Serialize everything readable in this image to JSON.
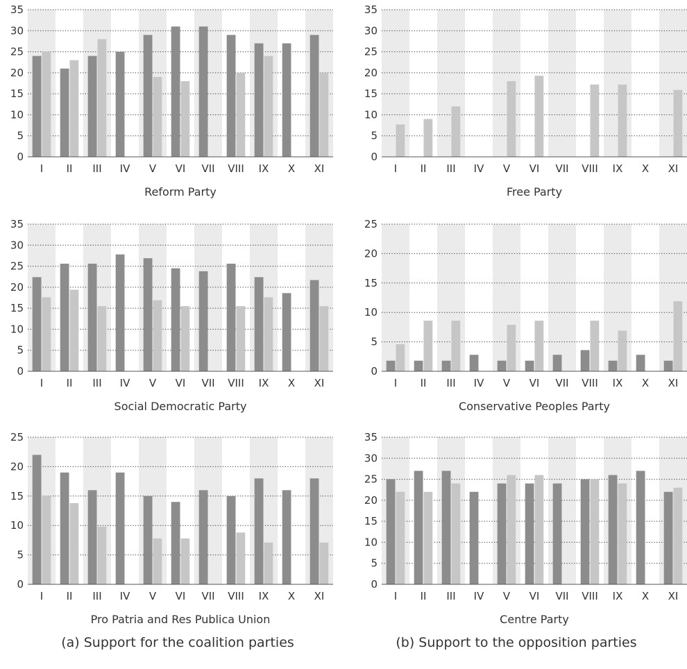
{
  "colors": {
    "band": "#ebebeb",
    "series_dark": "#8c8c8c",
    "series_light": "#c6c6c6",
    "axis": "#555555",
    "grid": "#333333"
  },
  "captions": {
    "left": "(a) Support for the coalition parties",
    "right": "(b) Support to the opposition parties"
  },
  "chart_data": [
    {
      "type": "bar",
      "title": "Reform Party",
      "categories": [
        "I",
        "II",
        "III",
        "IV",
        "V",
        "VI",
        "VII",
        "VIII",
        "IX",
        "X",
        "XI"
      ],
      "ylim": [
        0,
        35
      ],
      "yticks": [
        0,
        5,
        10,
        15,
        20,
        25,
        30,
        35
      ],
      "grid": true,
      "series": [
        {
          "values": [
            24,
            21,
            24,
            25,
            29,
            31,
            31,
            29,
            27,
            27,
            29
          ]
        },
        {
          "values": [
            25,
            23,
            28,
            null,
            19,
            18,
            null,
            20,
            24,
            null,
            20
          ]
        }
      ]
    },
    {
      "type": "bar",
      "title": "Free Party",
      "categories": [
        "I",
        "II",
        "III",
        "IV",
        "V",
        "VI",
        "VII",
        "VIII",
        "IX",
        "X",
        "XI"
      ],
      "ylim": [
        0,
        35
      ],
      "yticks": [
        0,
        5,
        10,
        15,
        20,
        25,
        30,
        35
      ],
      "grid": true,
      "series": [
        {
          "values": [
            null,
            null,
            null,
            null,
            null,
            null,
            null,
            null,
            null,
            null,
            null
          ]
        },
        {
          "values": [
            7.7,
            9,
            12,
            null,
            18,
            19.3,
            null,
            17.2,
            17.2,
            null,
            15.9
          ]
        }
      ]
    },
    {
      "type": "bar",
      "title": "Social Democratic Party",
      "categories": [
        "I",
        "II",
        "III",
        "IV",
        "V",
        "VI",
        "VII",
        "VIII",
        "IX",
        "X",
        "XI"
      ],
      "ylim": [
        0,
        35
      ],
      "yticks": [
        0,
        5,
        10,
        15,
        20,
        25,
        30,
        35
      ],
      "grid": true,
      "series": [
        {
          "values": [
            22.4,
            25.6,
            25.6,
            27.8,
            26.9,
            24.5,
            23.8,
            25.6,
            22.4,
            18.6,
            21.7
          ]
        },
        {
          "values": [
            17.6,
            19.4,
            15.5,
            null,
            16.9,
            15.5,
            null,
            15.5,
            17.6,
            null,
            15.5
          ]
        }
      ]
    },
    {
      "type": "bar",
      "title": "Conservative Peoples Party",
      "categories": [
        "I",
        "II",
        "III",
        "IV",
        "V",
        "VI",
        "VII",
        "VIII",
        "IX",
        "X",
        "XI"
      ],
      "ylim": [
        0,
        25
      ],
      "yticks": [
        0,
        5,
        10,
        15,
        20,
        25
      ],
      "grid": true,
      "series": [
        {
          "values": [
            1.8,
            1.8,
            1.8,
            2.8,
            1.8,
            1.8,
            2.8,
            3.6,
            1.8,
            2.8,
            1.8
          ]
        },
        {
          "values": [
            4.6,
            8.6,
            8.6,
            null,
            7.9,
            8.6,
            null,
            8.6,
            6.9,
            null,
            11.9
          ]
        }
      ]
    },
    {
      "type": "bar",
      "title": "Pro Patria and Res Publica Union",
      "categories": [
        "I",
        "II",
        "III",
        "IV",
        "V",
        "VI",
        "VII",
        "VIII",
        "IX",
        "X",
        "XI"
      ],
      "ylim": [
        0,
        25
      ],
      "yticks": [
        0,
        5,
        10,
        15,
        20,
        25
      ],
      "grid": true,
      "series": [
        {
          "values": [
            22,
            19,
            16,
            19,
            15,
            14,
            16,
            15,
            18,
            16,
            18
          ]
        },
        {
          "values": [
            15,
            13.8,
            9.8,
            null,
            7.8,
            7.8,
            null,
            8.8,
            7.1,
            null,
            7.1
          ]
        }
      ]
    },
    {
      "type": "bar",
      "title": "Centre Party",
      "categories": [
        "I",
        "II",
        "III",
        "IV",
        "V",
        "VI",
        "VII",
        "VIII",
        "IX",
        "X",
        "XI"
      ],
      "ylim": [
        0,
        35
      ],
      "yticks": [
        0,
        5,
        10,
        15,
        20,
        25,
        30,
        35
      ],
      "grid": true,
      "series": [
        {
          "values": [
            25,
            27,
            27,
            22,
            24,
            24,
            24,
            25,
            26,
            27,
            22
          ]
        },
        {
          "values": [
            22,
            22,
            24,
            null,
            26,
            26,
            null,
            25,
            24,
            null,
            23
          ]
        }
      ]
    }
  ]
}
